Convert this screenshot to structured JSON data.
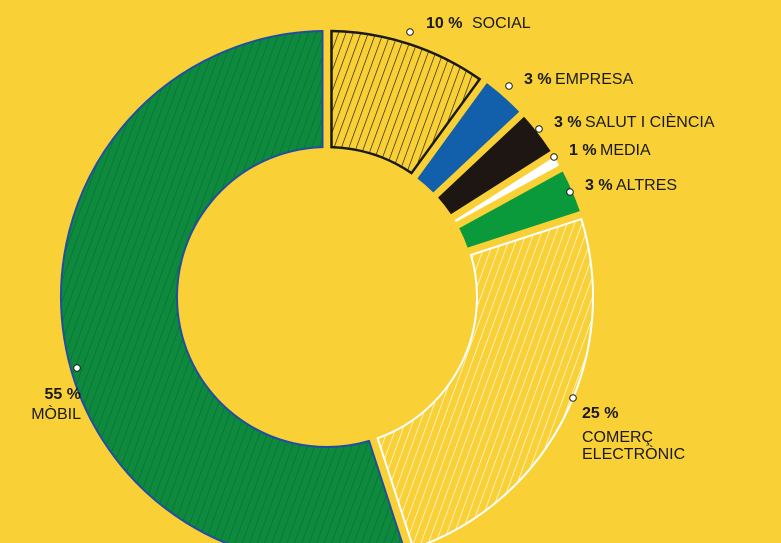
{
  "chart_data": {
    "type": "pie",
    "title": "",
    "slices": [
      {
        "label": "SOCIAL",
        "label_lines": [
          "SOCIAL"
        ],
        "value": 10,
        "pct_text": "10 %",
        "fill": "#F9D136",
        "stroke": "#1a1a1a",
        "hatch": "#1a1a1a",
        "name": "social"
      },
      {
        "label": "EMPRESA",
        "label_lines": [
          "EMPRESA"
        ],
        "value": 3,
        "pct_text": "3 %",
        "fill": "#1260AB",
        "stroke": "#1260AB",
        "hatch": null,
        "name": "empresa"
      },
      {
        "label": "SALUT I CIÈNCIA",
        "label_lines": [
          "SALUT I CIÈNCIA"
        ],
        "value": 3,
        "pct_text": "3 %",
        "fill": "#1E1612",
        "stroke": "#1E1612",
        "hatch": null,
        "name": "salut-i-ciencia"
      },
      {
        "label": "MEDIA",
        "label_lines": [
          "MEDIA"
        ],
        "value": 1,
        "pct_text": "1 %",
        "fill": "#FFFFFF",
        "stroke": "#FFFFFF",
        "hatch": null,
        "name": "media"
      },
      {
        "label": "ALTRES",
        "label_lines": [
          "ALTRES"
        ],
        "value": 3,
        "pct_text": "3 %",
        "fill": "#0A9A3C",
        "stroke": "#0A9A3C",
        "hatch": null,
        "name": "altres"
      },
      {
        "label": "COMERÇ ELECTRÒNIC",
        "label_lines": [
          "COMERÇ",
          "ELECTRÒNIC"
        ],
        "value": 25,
        "pct_text": "25 %",
        "fill": "#F9D136",
        "stroke": "#FFFFFF",
        "hatch": "#FFFFFF",
        "name": "comerc-electronic"
      },
      {
        "label": "MÒBIL",
        "label_lines": [
          "MÒBIL"
        ],
        "value": 55,
        "pct_text": "55 %",
        "fill": "#0E8A3E",
        "stroke": "#1F4FA0",
        "hatch": "#0B6B2E",
        "name": "mobil"
      }
    ]
  }
}
